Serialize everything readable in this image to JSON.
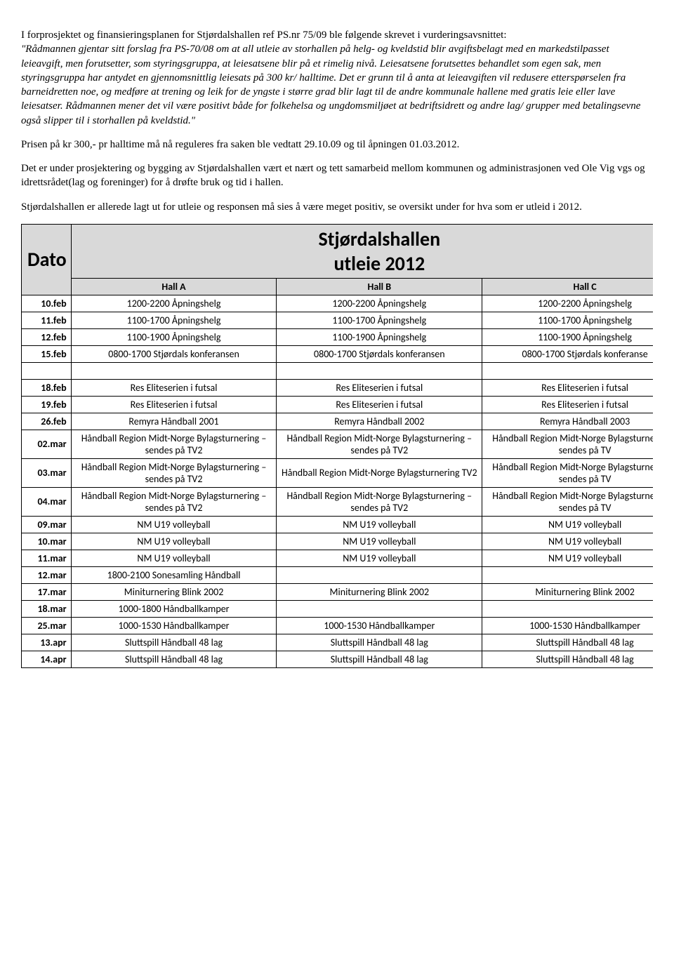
{
  "paras": {
    "p1_pre": "I forprosjektet og finansieringsplanen for Stjørdalshallen ref PS.nr 75/09 ble følgende skrevet i vurderingsavsnittet:",
    "p1_italic": "\"Rådmannen gjentar sitt forslag fra PS-70/08 om at all utleie av storhallen på helg- og kveldstid blir avgiftsbelagt med en markedstilpasset leieavgift, men forutsetter, som styringsgruppa, at leiesatsene blir på et rimelig nivå. Leiesatsene forutsettes behandlet som egen sak, men styringsgruppa har antydet en gjennomsnittlig leiesats på 300 kr/ halltime. Det er grunn til å anta at leieavgiften vil redusere etterspørselen fra barneidretten noe, og medføre at trening og leik for de yngste i større grad blir lagt til de andre kommunale hallene med gratis leie eller lave leiesatser. Rådmannen mener det vil være positivt både for folkehelsa og ungdomsmiljøet at bedriftsidrett og andre lag/ grupper med betalingsevne også slipper til i storhallen på kveldstid.\"",
    "p2": "Prisen på kr 300,- pr halltime må nå reguleres fra saken ble vedtatt 29.10.09 og til åpningen 01.03.2012.",
    "p3": "Det er under prosjektering og bygging av Stjørdalshallen vært et nært og tett samarbeid mellom kommunen og administrasjonen ved Ole Vig vgs og idrettsrådet(lag og foreninger) for å drøfte bruk og tid i hallen.",
    "p4": "Stjørdalshallen er allerede lagt ut for utleie og responsen må sies å være meget positiv, se oversikt under for hva som er utleid i 2012."
  },
  "table": {
    "title_line1": "Stjørdalshallen",
    "title_line2": "utleie 2012",
    "date_head": "Dato",
    "cols": [
      "Hall A",
      "Hall B",
      "Hall C"
    ],
    "rows": [
      {
        "d": "10.feb",
        "a": "1200-2200 Åpningshelg",
        "b": "1200-2200 Åpningshelg",
        "c": "1200-2200 Åpningshelg"
      },
      {
        "d": "11.feb",
        "a": "1100-1700 Åpningshelg",
        "b": "1100-1700 Åpningshelg",
        "c": "1100-1700 Åpningshelg"
      },
      {
        "d": "12.feb",
        "a": "1100-1900 Åpningshelg",
        "b": "1100-1900 Åpningshelg",
        "c": "1100-1900 Åpningshelg"
      },
      {
        "d": "15.feb",
        "a": "0800-1700 Stjørdals konferansen",
        "b": "0800-1700 Stjørdals konferansen",
        "c": "0800-1700 Stjørdals konferanse"
      },
      {
        "d": "18.feb",
        "a": "Res Eliteserien i futsal",
        "b": "Res Eliteserien i futsal",
        "c": "Res Eliteserien i futsal"
      },
      {
        "d": "19.feb",
        "a": "Res Eliteserien i futsal",
        "b": "Res Eliteserien i futsal",
        "c": "Res Eliteserien i futsal"
      },
      {
        "d": "26.feb",
        "a": "Remyra Håndball 2001",
        "b": "Remyra Håndball 2002",
        "c": "Remyra Håndball 2003"
      },
      {
        "d": "02.mar",
        "a": "Håndball Region Midt-Norge Bylagsturnering –sendes på TV2",
        "b": "Håndball Region Midt-Norge Bylagsturnering –sendes på TV2",
        "c": "Håndball Region Midt-Norge Bylagsturnering –sendes på TV"
      },
      {
        "d": "03.mar",
        "a": "Håndball Region Midt-Norge Bylagsturnering –sendes på TV2",
        "b": "Håndball Region Midt-Norge Bylagsturnering TV2",
        "c": "Håndball Region Midt-Norge Bylagsturnering –sendes på TV"
      },
      {
        "d": "04.mar",
        "a": "Håndball Region Midt-Norge Bylagsturnering –sendes på TV2",
        "b": "Håndball Region Midt-Norge Bylagsturnering –sendes på TV2",
        "c": "Håndball Region Midt-Norge Bylagsturnering –sendes på TV"
      },
      {
        "d": "09.mar",
        "a": "NM U19 volleyball",
        "b": "NM U19 volleyball",
        "c": "NM U19 volleyball"
      },
      {
        "d": "10.mar",
        "a": "NM U19 volleyball",
        "b": "NM U19 volleyball",
        "c": "NM U19 volleyball"
      },
      {
        "d": "11.mar",
        "a": "NM U19 volleyball",
        "b": "NM U19 volleyball",
        "c": "NM U19 volleyball"
      },
      {
        "d": "12.mar",
        "a": "1800-2100 Sonesamling Håndball",
        "b": "",
        "c": ""
      },
      {
        "d": "17.mar",
        "a": "Miniturnering Blink 2002",
        "b": "Miniturnering Blink 2002",
        "c": "Miniturnering Blink 2002"
      },
      {
        "d": "18.mar",
        "a": "1000-1800 Håndballkamper",
        "b": "",
        "c": ""
      },
      {
        "d": "25.mar",
        "a": "1000-1530 Håndballkamper",
        "b": "1000-1530 Håndballkamper",
        "c": "1000-1530 Håndballkamper"
      },
      {
        "d": "13.apr",
        "a": "Sluttspill Håndball 48 lag",
        "b": "Sluttspill Håndball 48 lag",
        "c": "Sluttspill Håndball 48 lag"
      },
      {
        "d": "14.apr",
        "a": "Sluttspill Håndball 48 lag",
        "b": "Sluttspill Håndball 48 lag",
        "c": "Sluttspill Håndball 48 lag"
      }
    ],
    "spacer_after_idx": [
      3
    ]
  }
}
